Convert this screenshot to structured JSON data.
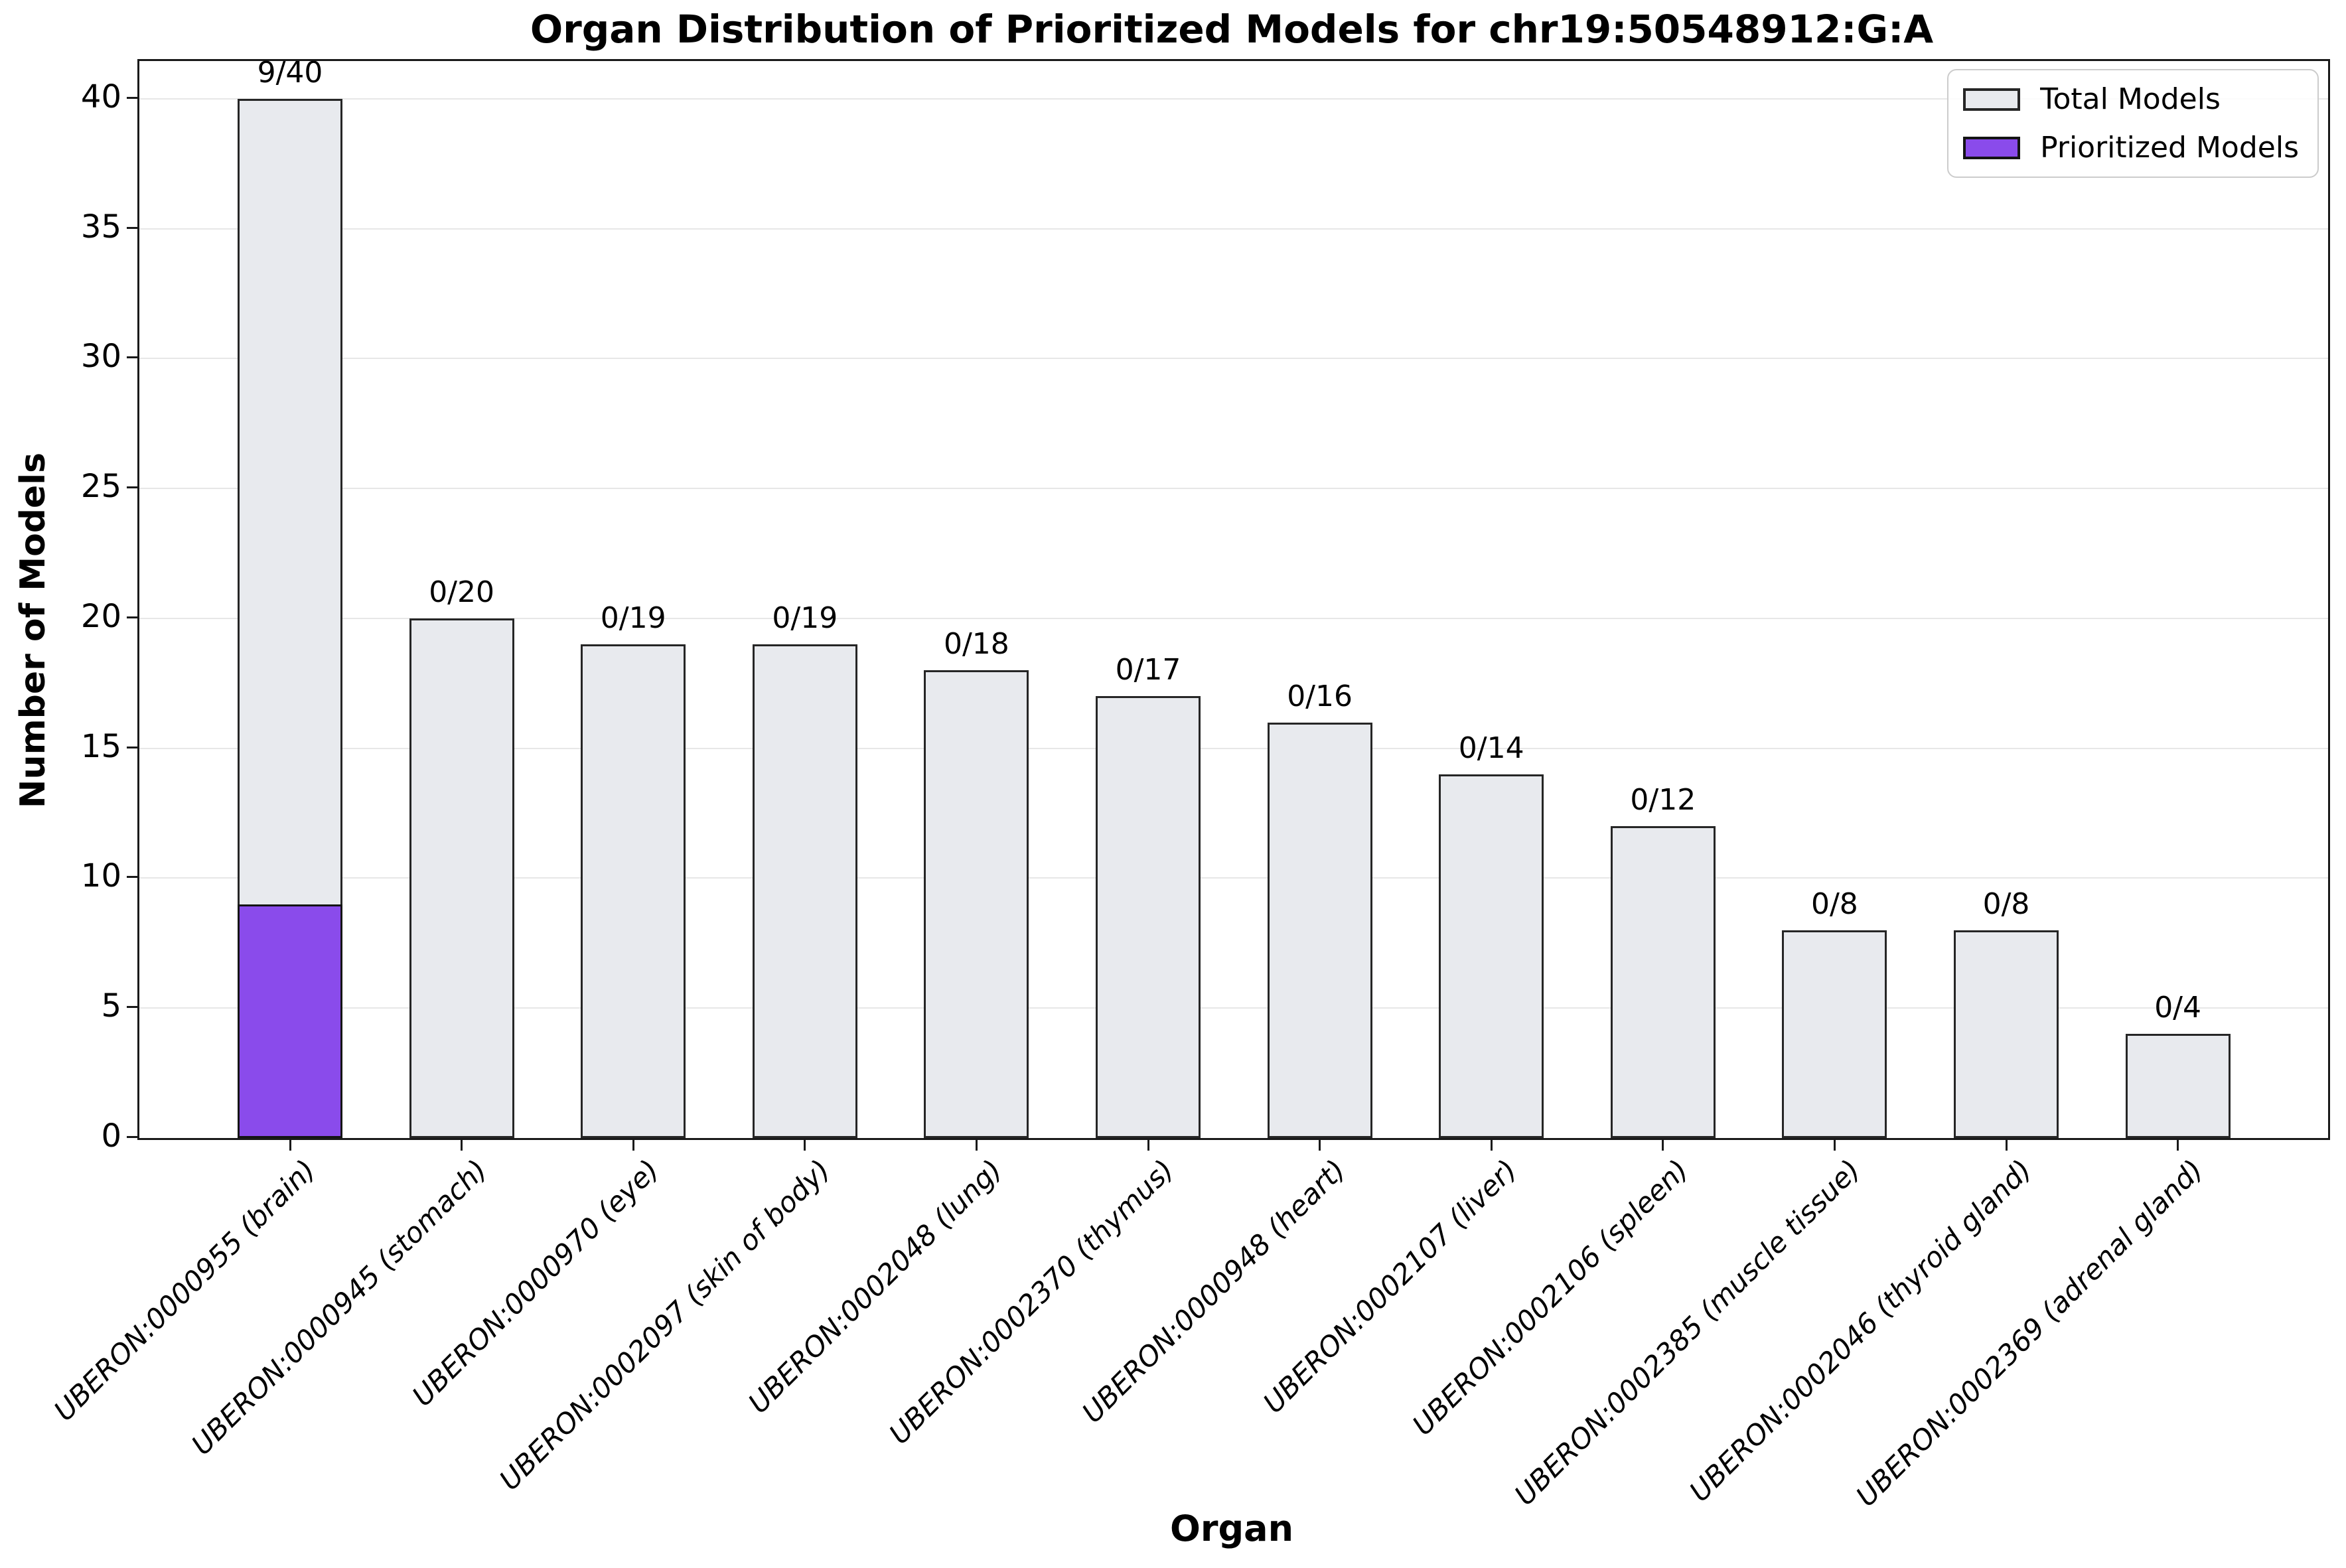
{
  "chart_data": {
    "type": "bar",
    "title": "Organ Distribution of Prioritized Models for chr19:50548912:G:A",
    "xlabel": "Organ",
    "ylabel": "Number of Models",
    "categories": [
      "UBERON:0000955 (brain)",
      "UBERON:0000945 (stomach)",
      "UBERON:0000970 (eye)",
      "UBERON:0002097 (skin of body)",
      "UBERON:0002048 (lung)",
      "UBERON:0002370 (thymus)",
      "UBERON:0000948 (heart)",
      "UBERON:0002107 (liver)",
      "UBERON:0002106 (spleen)",
      "UBERON:0002385 (muscle tissue)",
      "UBERON:0002046 (thyroid gland)",
      "UBERON:0002369 (adrenal gland)"
    ],
    "series": [
      {
        "name": "Total Models",
        "values": [
          40,
          20,
          19,
          19,
          18,
          17,
          16,
          14,
          12,
          8,
          8,
          4
        ],
        "color": "#e8eaee",
        "edge_color": "#262626"
      },
      {
        "name": "Prioritized Models",
        "values": [
          9,
          0,
          0,
          0,
          0,
          0,
          0,
          0,
          0,
          0,
          0,
          0
        ],
        "color": "#8a4beb",
        "edge_color": "#141414"
      }
    ],
    "bar_labels": [
      "9/40",
      "0/20",
      "0/19",
      "0/19",
      "0/18",
      "0/17",
      "0/16",
      "0/14",
      "0/12",
      "0/8",
      "0/8",
      "0/4"
    ],
    "y_ticks": [
      0,
      5,
      10,
      15,
      20,
      25,
      30,
      35,
      40
    ],
    "ylim": [
      0,
      41.45
    ],
    "grid": "horizontal",
    "grid_color": "#e7e7e7",
    "legend_position": "upper right"
  }
}
